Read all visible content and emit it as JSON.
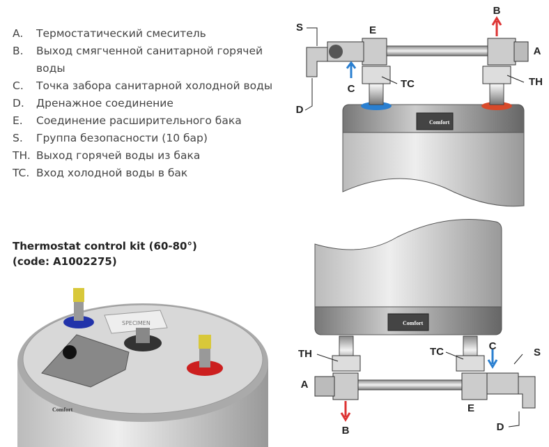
{
  "legend": [
    {
      "key": "A.",
      "text": "Термостатический смеситель"
    },
    {
      "key": "B.",
      "text": "Выход смягченной санитарной горячей воды"
    },
    {
      "key": "C.",
      "text": "Точка забора санитарной холодной воды"
    },
    {
      "key": "D.",
      "text": "Дренажное соединение"
    },
    {
      "key": "E.",
      "text": "Соединение расширительного бака"
    },
    {
      "key": "S.",
      "text": "Группа безопасности (10 бар)"
    },
    {
      "key": "TH.",
      "text": "Выход горячей воды из бака"
    },
    {
      "key": "TC.",
      "text": "Вход холодной воды в бак"
    }
  ],
  "kit": {
    "line1": "Thermostat control kit (60-80°)",
    "line2": "(code: A1002275)"
  },
  "top_diagram": {
    "labels": [
      "S",
      "E",
      "B",
      "A",
      "C",
      "TC",
      "TH",
      "D"
    ],
    "brand": "Comfort"
  },
  "bottom_diagram": {
    "labels": [
      "TH",
      "TC",
      "C",
      "S",
      "A",
      "E",
      "B",
      "D"
    ],
    "brand": "Comfort"
  },
  "photo": {
    "plate": "SPECIMEN",
    "brand": "Comfort"
  }
}
